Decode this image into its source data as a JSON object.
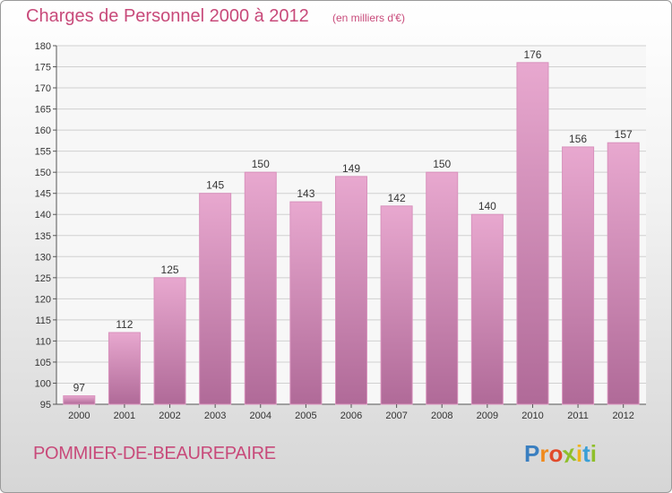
{
  "header": {
    "title": "Charges de Personnel 2000 à 2012",
    "unit": "(en milliers d'€)"
  },
  "footer": {
    "commune": "POMMIER-DE-BEAUREPAIRE"
  },
  "logo": {
    "letters": [
      "P",
      "r",
      "o",
      "x",
      "i",
      "t",
      "i"
    ],
    "colors": [
      "#3a7fc0",
      "#f08a1d",
      "#e14a2b",
      "#8fbf2a",
      "#f0b21d",
      "#3a9fd6",
      "#8fbf2a"
    ]
  },
  "colors": {
    "bar_top": "#e8a8cf",
    "bar_bottom": "#b06a98",
    "bar_edge": "#d992bd",
    "accent": "#c84a7a"
  },
  "chart_data": {
    "type": "bar",
    "categories": [
      "2000",
      "2001",
      "2002",
      "2003",
      "2004",
      "2005",
      "2006",
      "2007",
      "2008",
      "2009",
      "2010",
      "2011",
      "2012"
    ],
    "values": [
      97,
      112,
      125,
      145,
      150,
      143,
      149,
      142,
      150,
      140,
      176,
      156,
      157
    ],
    "ylim": [
      95,
      180
    ],
    "yticks": [
      95,
      100,
      105,
      110,
      115,
      120,
      125,
      130,
      135,
      140,
      145,
      150,
      155,
      160,
      165,
      170,
      175,
      180
    ],
    "grid": true,
    "data_labels": true
  }
}
